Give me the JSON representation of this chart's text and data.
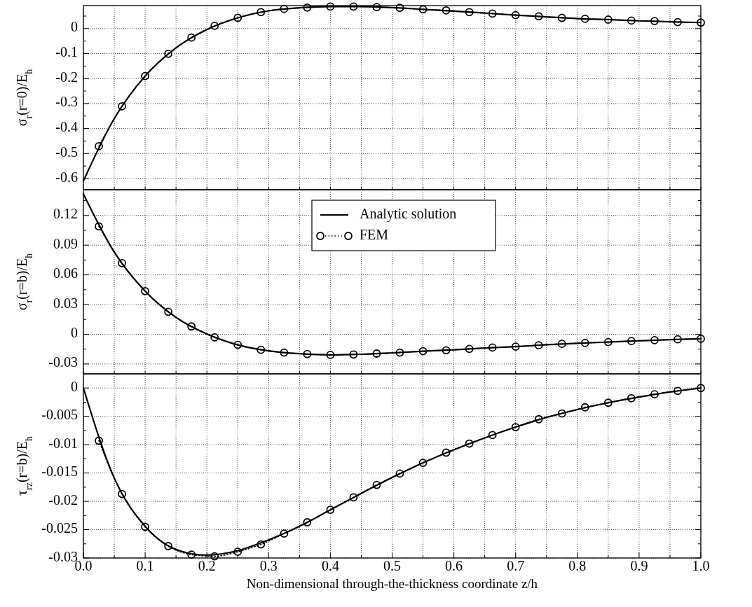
{
  "chart_data": [
    {
      "type": "line",
      "ylabel": "σ$_{r}$(r=0)/E$_{h}$",
      "xlim": [
        0,
        1
      ],
      "ylim": [
        -0.645,
        0.092
      ],
      "tick_labels": "y",
      "grid": true,
      "legend": false,
      "xticks": [
        {
          "value": 0,
          "label": null
        },
        {
          "value": 0.05,
          "label": null
        },
        {
          "value": 0.1,
          "label": null
        },
        {
          "value": 0.15,
          "label": null
        },
        {
          "value": 0.2,
          "label": null
        },
        {
          "value": 0.25,
          "label": null
        },
        {
          "value": 0.3,
          "label": null
        },
        {
          "value": 0.35,
          "label": null
        },
        {
          "value": 0.4,
          "label": null
        },
        {
          "value": 0.45,
          "label": null
        },
        {
          "value": 0.5,
          "label": null
        },
        {
          "value": 0.55,
          "label": null
        },
        {
          "value": 0.6,
          "label": null
        },
        {
          "value": 0.65,
          "label": null
        },
        {
          "value": 0.7,
          "label": null
        },
        {
          "value": 0.75,
          "label": null
        },
        {
          "value": 0.8,
          "label": null
        },
        {
          "value": 0.85,
          "label": null
        },
        {
          "value": 0.9,
          "label": null
        },
        {
          "value": 0.95,
          "label": null
        },
        {
          "value": 1,
          "label": null
        }
      ],
      "yticks": [
        {
          "value": -0.6,
          "label": "-0.6"
        },
        {
          "value": -0.55,
          "label": null
        },
        {
          "value": -0.5,
          "label": "-0.5"
        },
        {
          "value": -0.45,
          "label": null
        },
        {
          "value": -0.4,
          "label": "-0.4"
        },
        {
          "value": -0.35,
          "label": null
        },
        {
          "value": -0.3,
          "label": "-0.3"
        },
        {
          "value": -0.25,
          "label": null
        },
        {
          "value": -0.2,
          "label": "-0.2"
        },
        {
          "value": -0.15,
          "label": null
        },
        {
          "value": -0.1,
          "label": "-0.1"
        },
        {
          "value": -0.05,
          "label": null
        },
        0,
        {
          "value": 0.05,
          "label": null
        }
      ],
      "series": [
        {
          "color": "#000000",
          "marker": "none",
          "line_style": "solid",
          "x": [
            0,
            0.05,
            0.1,
            0.15,
            0.2,
            0.25,
            0.3,
            0.35,
            0.4,
            0.45,
            0.5,
            0.55,
            0.6,
            0.65,
            0.7,
            0.75,
            0.8,
            0.85,
            0.9,
            0.95,
            1
          ],
          "values": [
            -0.61,
            -0.36,
            -0.19,
            -0.077,
            -0.004,
            0.043,
            0.071,
            0.083,
            0.088,
            0.088,
            0.084,
            0.077,
            0.07,
            0.062,
            0.054,
            0.047,
            0.04,
            0.036,
            0.031,
            0.027,
            0.024
          ]
        },
        {
          "color": "#000000",
          "marker": "circle",
          "line_style": "dotted",
          "x": [
            0.025,
            0.0625,
            0.1,
            0.1375,
            0.175,
            0.2125,
            0.25,
            0.2875,
            0.325,
            0.3625,
            0.4,
            0.4375,
            0.475,
            0.5125,
            0.55,
            0.5875,
            0.625,
            0.6625,
            0.7,
            0.7375,
            0.775,
            0.8125,
            0.85,
            0.8875,
            0.925,
            0.9625,
            1
          ],
          "values": [
            -0.471,
            -0.311,
            -0.19,
            -0.101,
            -0.036,
            0.011,
            0.043,
            0.066,
            0.079,
            0.084,
            0.088,
            0.088,
            0.086,
            0.083,
            0.077,
            0.073,
            0.066,
            0.06,
            0.054,
            0.049,
            0.043,
            0.039,
            0.036,
            0.032,
            0.03,
            0.026,
            0.024
          ]
        }
      ]
    },
    {
      "type": "line",
      "ylabel": "σ$_{r}$(r=b)/E$_{h}$",
      "xlim": [
        0,
        1
      ],
      "ylim": [
        -0.04,
        0.146
      ],
      "tick_labels": "y",
      "grid": true,
      "legend": "top",
      "xticks": [
        {
          "value": 0,
          "label": null
        },
        {
          "value": 0.05,
          "label": null
        },
        {
          "value": 0.1,
          "label": null
        },
        {
          "value": 0.15,
          "label": null
        },
        {
          "value": 0.2,
          "label": null
        },
        {
          "value": 0.25,
          "label": null
        },
        {
          "value": 0.3,
          "label": null
        },
        {
          "value": 0.35,
          "label": null
        },
        {
          "value": 0.4,
          "label": null
        },
        {
          "value": 0.45,
          "label": null
        },
        {
          "value": 0.5,
          "label": null
        },
        {
          "value": 0.55,
          "label": null
        },
        {
          "value": 0.6,
          "label": null
        },
        {
          "value": 0.65,
          "label": null
        },
        {
          "value": 0.7,
          "label": null
        },
        {
          "value": 0.75,
          "label": null
        },
        {
          "value": 0.8,
          "label": null
        },
        {
          "value": 0.85,
          "label": null
        },
        {
          "value": 0.9,
          "label": null
        },
        {
          "value": 0.95,
          "label": null
        },
        {
          "value": 1,
          "label": null
        }
      ],
      "yticks": [
        -0.03,
        {
          "value": -0.015,
          "label": null
        },
        0,
        {
          "value": 0.015,
          "label": null
        },
        0.03,
        {
          "value": 0.045,
          "label": null
        },
        0.06,
        {
          "value": 0.075,
          "label": null
        },
        0.09,
        {
          "value": 0.105,
          "label": null
        },
        0.12,
        {
          "value": 0.135,
          "label": null
        }
      ],
      "series": [
        {
          "name": "Analytic solution",
          "color": "#000000",
          "marker": "none",
          "line_style": "solid",
          "x": [
            0,
            0.05,
            0.1,
            0.15,
            0.2,
            0.25,
            0.3,
            0.35,
            0.4,
            0.45,
            0.5,
            0.55,
            0.6,
            0.65,
            0.7,
            0.75,
            0.8,
            0.85,
            0.9,
            0.95,
            1
          ],
          "values": [
            0.1418,
            0.083,
            0.0436,
            0.017,
            0.0003,
            -0.0107,
            -0.0167,
            -0.0196,
            -0.0208,
            -0.0202,
            -0.0188,
            -0.0171,
            -0.0157,
            -0.0139,
            -0.0125,
            -0.0106,
            -0.0091,
            -0.0079,
            -0.0066,
            -0.0054,
            -0.0046
          ]
        },
        {
          "name": "FEM",
          "color": "#000000",
          "marker": "circle",
          "line_style": "dotted",
          "x": [
            0.025,
            0.0625,
            0.1,
            0.1375,
            0.175,
            0.2125,
            0.25,
            0.2875,
            0.325,
            0.3625,
            0.4,
            0.4375,
            0.475,
            0.5125,
            0.55,
            0.5875,
            0.625,
            0.6625,
            0.7,
            0.7375,
            0.775,
            0.8125,
            0.85,
            0.8875,
            0.925,
            0.9625,
            1
          ],
          "values": [
            0.109,
            0.0718,
            0.0436,
            0.0227,
            0.0079,
            -0.0032,
            -0.0107,
            -0.0157,
            -0.0185,
            -0.02,
            -0.0208,
            -0.0204,
            -0.0195,
            -0.0185,
            -0.0171,
            -0.0162,
            -0.0148,
            -0.0134,
            -0.0125,
            -0.0111,
            -0.0097,
            -0.0088,
            -0.0079,
            -0.0069,
            -0.006,
            -0.0051,
            -0.0046
          ]
        }
      ]
    },
    {
      "type": "line",
      "ylabel": "τ$_{rz}$(r=b)/E$_{h}$",
      "xlabel": "Non-dimensional through-the-thickness coordinate z/h",
      "xlim": [
        0,
        1
      ],
      "ylim": [
        -0.03,
        0.0025
      ],
      "grid": true,
      "legend": false,
      "xticks": [
        {
          "value": 0,
          "label": "0.0"
        },
        {
          "value": 0.05,
          "label": null
        },
        0.1,
        {
          "value": 0.15,
          "label": null
        },
        0.2,
        {
          "value": 0.25,
          "label": null
        },
        0.3,
        {
          "value": 0.35,
          "label": null
        },
        0.4,
        {
          "value": 0.45,
          "label": null
        },
        0.5,
        {
          "value": 0.55,
          "label": null
        },
        0.6,
        {
          "value": 0.65,
          "label": null
        },
        0.7,
        {
          "value": 0.75,
          "label": null
        },
        0.8,
        {
          "value": 0.85,
          "label": null
        },
        0.9,
        {
          "value": 0.95,
          "label": null
        },
        {
          "value": 1,
          "label": "1.0"
        }
      ],
      "yticks": [
        -0.03,
        {
          "value": -0.0275,
          "label": null
        },
        -0.025,
        {
          "value": -0.0225,
          "label": null
        },
        -0.02,
        {
          "value": -0.0175,
          "label": null
        },
        -0.015,
        {
          "value": -0.0125,
          "label": null
        },
        -0.01,
        {
          "value": -0.0075,
          "label": null
        },
        -0.005,
        {
          "value": -0.0025,
          "label": null
        },
        0
      ],
      "series": [
        {
          "color": "#000000",
          "marker": "none",
          "line_style": "solid",
          "x": [
            0,
            0.05,
            0.1,
            0.15,
            0.2,
            0.25,
            0.3,
            0.35,
            0.4,
            0.45,
            0.5,
            0.55,
            0.6,
            0.65,
            0.7,
            0.75,
            0.8,
            0.85,
            0.9,
            0.95,
            1
          ],
          "values": [
            0,
            -0.0159,
            -0.0244,
            -0.0285,
            -0.0295,
            -0.0287,
            -0.0268,
            -0.0244,
            -0.0215,
            -0.0186,
            -0.0158,
            -0.0132,
            -0.0109,
            -0.0088,
            -0.0069,
            -0.0052,
            -0.0038,
            -0.0026,
            -0.0016,
            -0.0007,
            0
          ]
        },
        {
          "color": "#000000",
          "marker": "circle",
          "line_style": "dotted",
          "x": [
            0.025,
            0.0625,
            0.1,
            0.1375,
            0.175,
            0.2125,
            0.25,
            0.2875,
            0.325,
            0.3625,
            0.4,
            0.4375,
            0.475,
            0.5125,
            0.55,
            0.5875,
            0.625,
            0.6625,
            0.7,
            0.7375,
            0.775,
            0.8125,
            0.85,
            0.8875,
            0.925,
            0.9625,
            1
          ],
          "values": [
            -0.0093,
            -0.0187,
            -0.0245,
            -0.0279,
            -0.0294,
            -0.0297,
            -0.0289,
            -0.0276,
            -0.0257,
            -0.0237,
            -0.0215,
            -0.0193,
            -0.0171,
            -0.0151,
            -0.0132,
            -0.0114,
            -0.0098,
            -0.0083,
            -0.0069,
            -0.0055,
            -0.0045,
            -0.0034,
            -0.0026,
            -0.0018,
            -0.0011,
            -0.0005,
            0
          ]
        }
      ]
    }
  ]
}
